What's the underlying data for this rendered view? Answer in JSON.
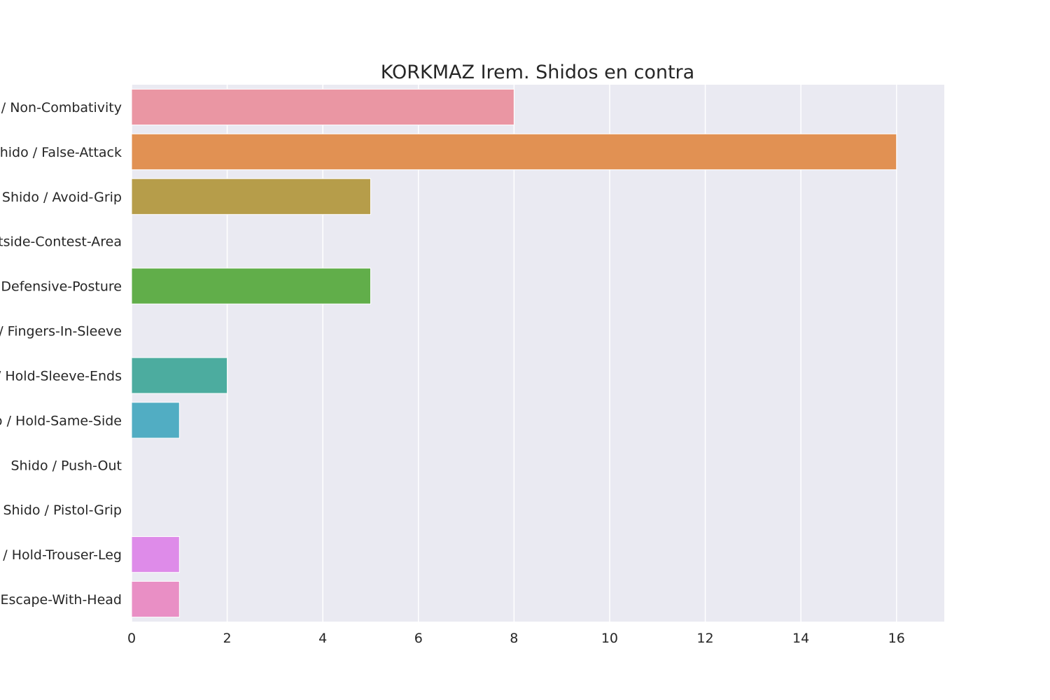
{
  "chart_data": {
    "type": "bar",
    "orientation": "horizontal",
    "title": "KORKMAZ Irem. Shidos en contra",
    "xlabel": "",
    "ylabel": "",
    "categories": [
      "Shido / Non-Combativity",
      "Shido / False-Attack",
      "Shido / Avoid-Grip",
      "Shido / Outside-Contest-Area",
      "Shido / Defensive-Posture",
      "Shido / Fingers-In-Sleeve",
      "Shido / Hold-Sleeve-Ends",
      "Shido / Hold-Same-Side",
      "Shido / Push-Out",
      "Shido / Pistol-Grip",
      "Shido / Hold-Trouser-Leg",
      "Shido / Escape-With-Head"
    ],
    "values": [
      8,
      16,
      5,
      0,
      5,
      0,
      2,
      1,
      0,
      0,
      1,
      1
    ],
    "colors": [
      "#ea96a3",
      "#e19153",
      "#b69d4a",
      "#8fa84a",
      "#61ae4a",
      "#4faf8a",
      "#4cac9f",
      "#51adc3",
      "#78a7e6",
      "#b597ea",
      "#de8be9",
      "#e98fc5"
    ],
    "xlim": [
      0,
      17
    ],
    "xticks": [
      0,
      2,
      4,
      6,
      8,
      10,
      12,
      14,
      16
    ],
    "grid": true,
    "background": "#eaeaf2",
    "legend": "none"
  }
}
